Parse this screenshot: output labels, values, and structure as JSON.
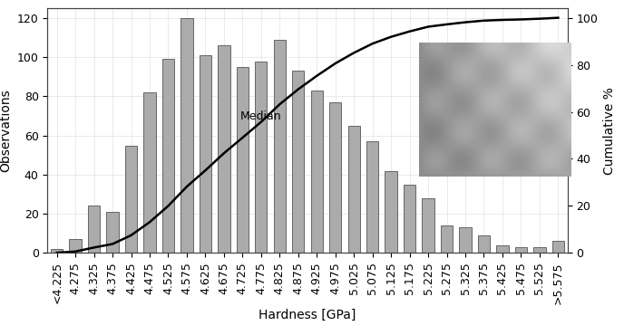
{
  "chart_data": {
    "type": "bar",
    "categories": [
      "<4.225",
      "4.275",
      "4.325",
      "4.375",
      "4.425",
      "4.475",
      "4.525",
      "4.575",
      "4.625",
      "4.675",
      "4.725",
      "4.775",
      "4.825",
      "4.875",
      "4.925",
      "4.975",
      "5.025",
      "5.075",
      "5.125",
      "5.175",
      "5.225",
      "5.275",
      "5.325",
      "5.375",
      "5.425",
      "5.475",
      "5.525",
      ">5.575"
    ],
    "x_label": "Hardness [GPa]",
    "y_label": "Observations",
    "y2_label": "Cumulative %",
    "series": [
      {
        "type": "bar",
        "color": "#ababab",
        "values": [
          2,
          7,
          24,
          21,
          55,
          82,
          99,
          120,
          101,
          106,
          95,
          98,
          109,
          93,
          83,
          77,
          65,
          57,
          42,
          35,
          28,
          14,
          13,
          9,
          4,
          3,
          3,
          6
        ]
      },
      {
        "type": "line",
        "color": "#000000",
        "axis": "y2",
        "values": [
          0.1,
          0.6,
          2.3,
          3.8,
          7.5,
          13.1,
          20.0,
          28.2,
          35.1,
          42.4,
          49.0,
          55.7,
          63.2,
          69.6,
          75.3,
          80.6,
          85.1,
          89.0,
          91.9,
          94.2,
          96.2,
          97.2,
          98.1,
          98.8,
          99.1,
          99.3,
          99.6,
          100
        ]
      }
    ],
    "ylim": [
      0,
      125
    ],
    "yticks": [
      0,
      20,
      40,
      60,
      80,
      100,
      120
    ],
    "y2lim": [
      0,
      104
    ],
    "y2ticks": [
      0,
      20,
      40,
      60,
      80,
      100
    ],
    "annotations": [
      {
        "text": "Median",
        "x": "4.775",
        "y": 70
      }
    ],
    "grid": true
  }
}
